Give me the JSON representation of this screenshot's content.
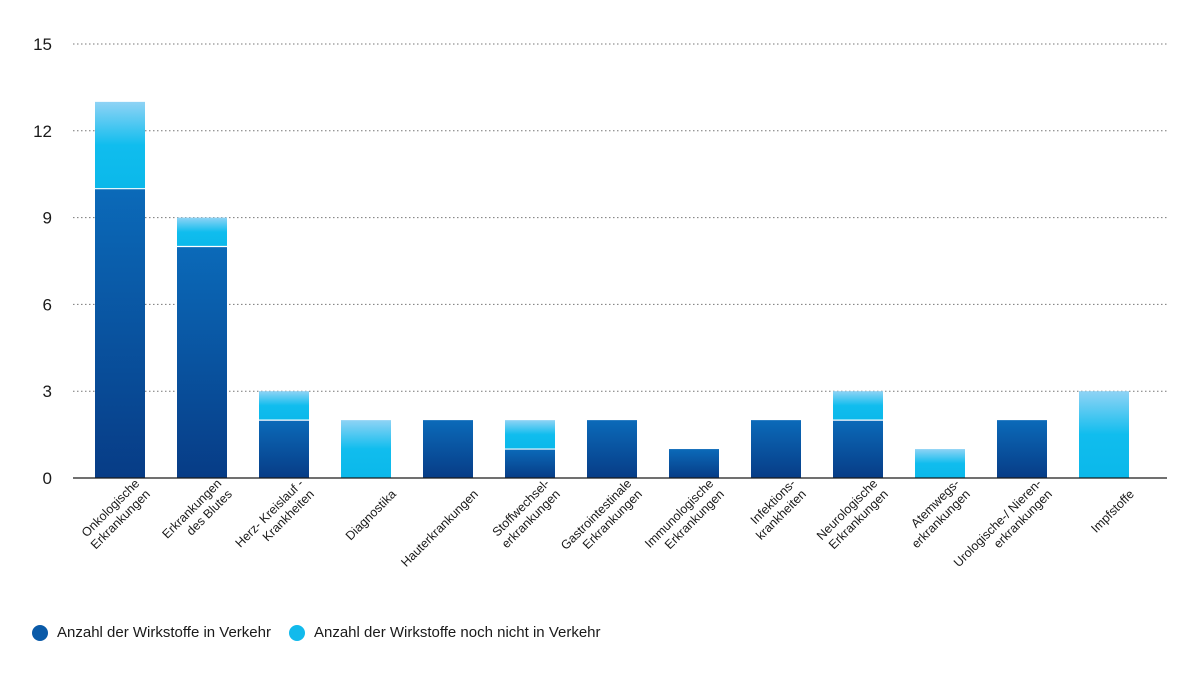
{
  "chart_data": {
    "type": "bar",
    "stacked": true,
    "title": "",
    "xlabel": "",
    "ylabel": "",
    "ylim": [
      0,
      15
    ],
    "yticks": [
      0,
      3,
      6,
      9,
      12,
      15
    ],
    "grid": true,
    "legend_position": "bottom-left",
    "categories": [
      [
        "Onkologische",
        "Erkrankungen"
      ],
      [
        "Erkrankungen",
        "des Blutes"
      ],
      [
        "Herz- Kreislauf -",
        "Krankheiten"
      ],
      [
        "Diagnostika"
      ],
      [
        "Hauterkrankungen"
      ],
      [
        "Stoffwechsel-",
        "erkrankungen"
      ],
      [
        "Gastrointestinale",
        "Erkrankungen"
      ],
      [
        "Immunologische",
        "Erkrankungen"
      ],
      [
        "Infektions-",
        "krankheiten"
      ],
      [
        "Neurologische",
        "Erkrankungen"
      ],
      [
        "Atemwegs-",
        "erkrankungen"
      ],
      [
        "Urologische-/ Nieren-",
        "erkrankungen"
      ],
      [
        "Impfstoffe"
      ]
    ],
    "series": [
      {
        "name": "Anzahl der Wirkstoffe in Verkehr",
        "color": "#0a5aa8",
        "values": [
          10,
          8,
          2,
          0,
          2,
          1,
          2,
          1,
          2,
          2,
          0,
          2,
          0
        ]
      },
      {
        "name": "Anzahl der Wirkstoffe noch nicht in Verkehr",
        "color": "#12baec",
        "values": [
          3,
          1,
          1,
          2,
          0,
          1,
          0,
          0,
          0,
          1,
          1,
          0,
          3
        ]
      }
    ]
  }
}
